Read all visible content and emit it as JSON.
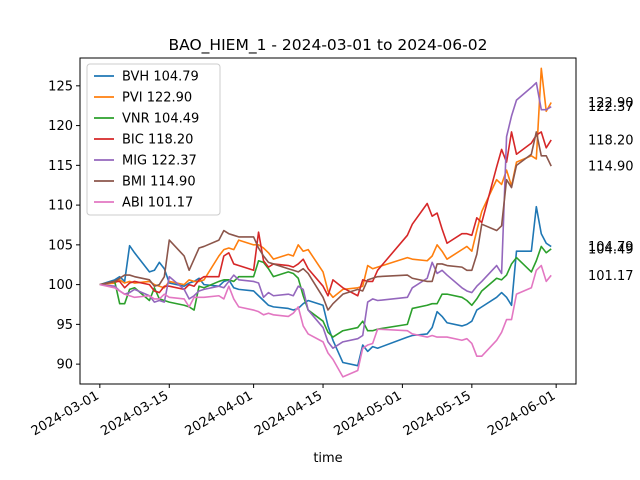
{
  "chart_data": {
    "type": "line",
    "title": "BAO_HIEM_1 - 2024-03-01 to 2024-06-02",
    "xlabel": "time",
    "ylabel": "",
    "x_ticks": [
      "2024-03-01",
      "2024-03-15",
      "2024-04-01",
      "2024-04-15",
      "2024-05-01",
      "2024-05-15",
      "2024-06-01"
    ],
    "y_ticks": [
      90,
      95,
      100,
      105,
      110,
      115,
      120,
      125
    ],
    "xlim": [
      "2024-02-26",
      "2024-06-05"
    ],
    "ylim": [
      87.5,
      128.5
    ],
    "legend_position": "top-left",
    "grid": false,
    "x": [
      "2024-03-01",
      "2024-03-04",
      "2024-03-05",
      "2024-03-06",
      "2024-03-07",
      "2024-03-08",
      "2024-03-11",
      "2024-03-12",
      "2024-03-13",
      "2024-03-14",
      "2024-03-15",
      "2024-03-18",
      "2024-03-19",
      "2024-03-20",
      "2024-03-21",
      "2024-03-22",
      "2024-03-25",
      "2024-03-26",
      "2024-03-27",
      "2024-03-28",
      "2024-03-29",
      "2024-04-01",
      "2024-04-02",
      "2024-04-03",
      "2024-04-04",
      "2024-04-05",
      "2024-04-08",
      "2024-04-09",
      "2024-04-10",
      "2024-04-11",
      "2024-04-12",
      "2024-04-15",
      "2024-04-16",
      "2024-04-17",
      "2024-04-19",
      "2024-04-22",
      "2024-04-23",
      "2024-04-24",
      "2024-04-25",
      "2024-04-26",
      "2024-05-02",
      "2024-05-03",
      "2024-05-06",
      "2024-05-07",
      "2024-05-08",
      "2024-05-09",
      "2024-05-10",
      "2024-05-13",
      "2024-05-14",
      "2024-05-15",
      "2024-05-16",
      "2024-05-17",
      "2024-05-20",
      "2024-05-21",
      "2024-05-22",
      "2024-05-23",
      "2024-05-24",
      "2024-05-27",
      "2024-05-28",
      "2024-05-29",
      "2024-05-30",
      "2024-05-31"
    ],
    "series": [
      {
        "name": "BVH 104.79",
        "color": "#1f77b4",
        "end_value": 104.79,
        "values": [
          100,
          100.6,
          101,
          100.4,
          104.9,
          104,
          101.6,
          101.8,
          102.8,
          102,
          100.2,
          99.8,
          100.2,
          100.4,
          100.8,
          100,
          99.8,
          100.4,
          100.6,
          99.6,
          99.4,
          99.2,
          98.6,
          98,
          97.4,
          97.2,
          97,
          96.8,
          97,
          97.6,
          98,
          97.4,
          94.8,
          93,
          90.2,
          89.8,
          92.4,
          91.6,
          92.2,
          92,
          93.4,
          93.6,
          93.8,
          94.6,
          96.6,
          96,
          95.2,
          94.8,
          95,
          95.4,
          96.8,
          97.2,
          98.4,
          99,
          98.4,
          97.4,
          104.2,
          104.2,
          109.8,
          106.4,
          105.2,
          104.79
        ]
      },
      {
        "name": "PVI 122.90",
        "color": "#ff7f0e",
        "end_value": 122.9,
        "values": [
          100,
          100.2,
          100.6,
          100.2,
          100.4,
          100.2,
          100.4,
          100,
          99.8,
          99.6,
          100.4,
          100,
          100.6,
          100.4,
          100.4,
          100.6,
          103.6,
          104.4,
          104.6,
          104.4,
          105.6,
          105,
          105,
          104.6,
          104,
          103.2,
          103.8,
          103.6,
          105,
          104.2,
          104.4,
          101.6,
          99.2,
          98.4,
          99.4,
          99.6,
          99.8,
          102.4,
          102,
          102.2,
          103.4,
          103.2,
          103,
          103.6,
          105,
          104.2,
          103.2,
          104.4,
          104.8,
          104.2,
          106.8,
          109.2,
          113.2,
          112.6,
          114.4,
          112.4,
          115.4,
          116.2,
          115.8,
          127.2,
          121.8,
          122.9
        ]
      },
      {
        "name": "VNR 104.49",
        "color": "#2ca02c",
        "end_value": 104.49,
        "values": [
          100,
          100.4,
          97.6,
          97.6,
          99.4,
          99.6,
          98,
          99.6,
          98.2,
          98,
          97.8,
          97.4,
          97.2,
          96.8,
          99.8,
          99.6,
          100.4,
          100.6,
          100.6,
          100.4,
          101,
          101,
          103,
          102.8,
          102,
          101,
          101.6,
          101.4,
          100.8,
          98.6,
          96.8,
          95.4,
          94,
          93.4,
          94.2,
          94.6,
          95.4,
          94.2,
          94.2,
          94.4,
          95,
          97,
          97.4,
          97.6,
          97.6,
          98.8,
          98.8,
          98.4,
          98,
          97.4,
          98.2,
          99.2,
          100.8,
          100.6,
          101.2,
          102.6,
          103.4,
          101.6,
          103,
          104.8,
          104,
          104.49
        ]
      },
      {
        "name": "BIC 118.20",
        "color": "#d62728",
        "end_value": 118.2,
        "values": [
          100,
          100.4,
          100.4,
          99.6,
          100.2,
          100.4,
          100,
          99.2,
          99,
          99.8,
          99.8,
          99.4,
          100,
          99.8,
          100.6,
          101,
          101,
          103.6,
          104,
          102.6,
          102.4,
          101.8,
          106.6,
          103,
          102.2,
          102.6,
          102.4,
          102.2,
          102.6,
          103.2,
          102,
          99.8,
          98.6,
          100.6,
          99.6,
          98.6,
          100.6,
          100.4,
          100.4,
          101.8,
          106.2,
          107.6,
          110.2,
          108.6,
          109,
          107,
          105.2,
          106.4,
          106.4,
          106.2,
          108.4,
          107.8,
          114.8,
          117,
          115.4,
          119.2,
          116.4,
          117.8,
          118.8,
          119.2,
          117.2,
          118.2
        ]
      },
      {
        "name": "MIG 122.37",
        "color": "#9467bd",
        "end_value": 122.37,
        "values": [
          100,
          99.8,
          99.2,
          98.8,
          99,
          99.4,
          98.6,
          97.8,
          98,
          97.8,
          101,
          99.4,
          98.2,
          98.6,
          99.2,
          99.4,
          99.8,
          99.6,
          100.4,
          101.2,
          100.6,
          100.4,
          100.2,
          98.4,
          99,
          98.6,
          98.8,
          98.6,
          99.8,
          99.4,
          96.8,
          94.6,
          92.8,
          92,
          92.8,
          93.2,
          93.6,
          97.8,
          98.2,
          98,
          98.4,
          99.6,
          100.8,
          102.8,
          101.4,
          101.8,
          101.2,
          99.6,
          99.2,
          99,
          99.8,
          100.4,
          102.4,
          101.4,
          118.6,
          121.2,
          123.2,
          124.8,
          125.4,
          122,
          122,
          122.37
        ]
      },
      {
        "name": "BMI 114.90",
        "color": "#8c564b",
        "end_value": 114.9,
        "values": [
          100,
          100.4,
          100.8,
          101.2,
          101.2,
          101,
          100.6,
          99.8,
          100,
          101,
          105.6,
          103.6,
          101.8,
          103.2,
          104.6,
          104.8,
          105.6,
          106.8,
          106.4,
          106.2,
          106,
          106,
          104.6,
          103.6,
          102.8,
          102.6,
          102,
          101.8,
          101.6,
          102,
          101.4,
          98.4,
          96.8,
          97.6,
          98.8,
          99.4,
          99.2,
          100.6,
          100.8,
          101,
          101.2,
          100.8,
          100.4,
          100.4,
          102.6,
          102.6,
          102.4,
          102.2,
          101.8,
          101.8,
          103.8,
          107.6,
          106.8,
          107.4,
          113.2,
          112.2,
          115,
          116.4,
          119.2,
          116.2,
          116.2,
          114.9
        ]
      },
      {
        "name": "ABI 101.17",
        "color": "#e377c2",
        "end_value": 101.17,
        "values": [
          100,
          99.6,
          99.2,
          98.8,
          98.6,
          98.4,
          98.6,
          98.2,
          98.2,
          98.8,
          98.4,
          98.2,
          97.2,
          98.4,
          98.4,
          98.4,
          98.6,
          98.2,
          99.8,
          98.2,
          97.2,
          96.8,
          96.6,
          96.2,
          96.4,
          96.2,
          96,
          96.4,
          97.2,
          94.8,
          93.8,
          92.8,
          91.4,
          90.6,
          88.4,
          89.2,
          92,
          92.4,
          92.6,
          94.4,
          94.2,
          93.8,
          93.4,
          93.6,
          93.4,
          93.4,
          93.4,
          93,
          93.2,
          92.6,
          91,
          91,
          93,
          94,
          95.6,
          95.6,
          98.8,
          99.6,
          101.8,
          102.4,
          100.4,
          101.17
        ]
      }
    ],
    "end_labels": [
      "122.90",
      "122.37",
      "118.20",
      "114.90",
      "104.79",
      "104.49",
      "101.17"
    ]
  }
}
